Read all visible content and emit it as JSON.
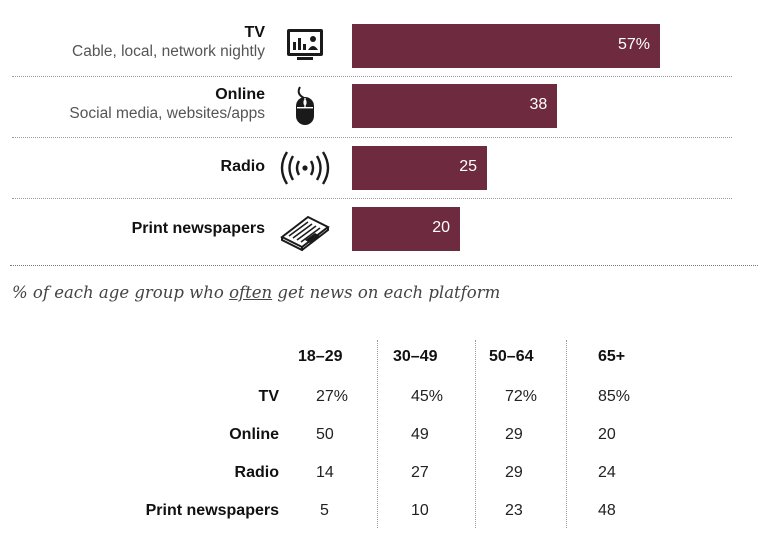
{
  "chart_data": [
    {
      "type": "bar",
      "orientation": "horizontal",
      "title": "",
      "categories": [
        "TV",
        "Online",
        "Radio",
        "Print newspapers"
      ],
      "subcategories": [
        "Cable, local, network nightly",
        "Social media, websites/apps",
        "",
        ""
      ],
      "icons": [
        "tv-icon",
        "mouse-icon",
        "radio-waves-icon",
        "newspaper-icon"
      ],
      "values": [
        57,
        38,
        25,
        20
      ],
      "value_labels": [
        "57%",
        "38",
        "25",
        "20"
      ],
      "xlim": [
        0,
        100
      ],
      "color": "#6e2a3e"
    },
    {
      "type": "table",
      "title_parts": [
        "% of each age group who ",
        "often",
        " get news on each platform"
      ],
      "columns": [
        "18–29",
        "30–49",
        "50–64",
        "65+"
      ],
      "rows": [
        {
          "label": "TV",
          "values": [
            "27%",
            "45%",
            "72%",
            "85%"
          ]
        },
        {
          "label": "Online",
          "values": [
            "50",
            "49",
            "29",
            "20"
          ]
        },
        {
          "label": "Radio",
          "values": [
            "14",
            "27",
            "29",
            "24"
          ]
        },
        {
          "label": "Print newspapers",
          "values": [
            "5",
            "10",
            "23",
            "48"
          ]
        }
      ]
    }
  ]
}
